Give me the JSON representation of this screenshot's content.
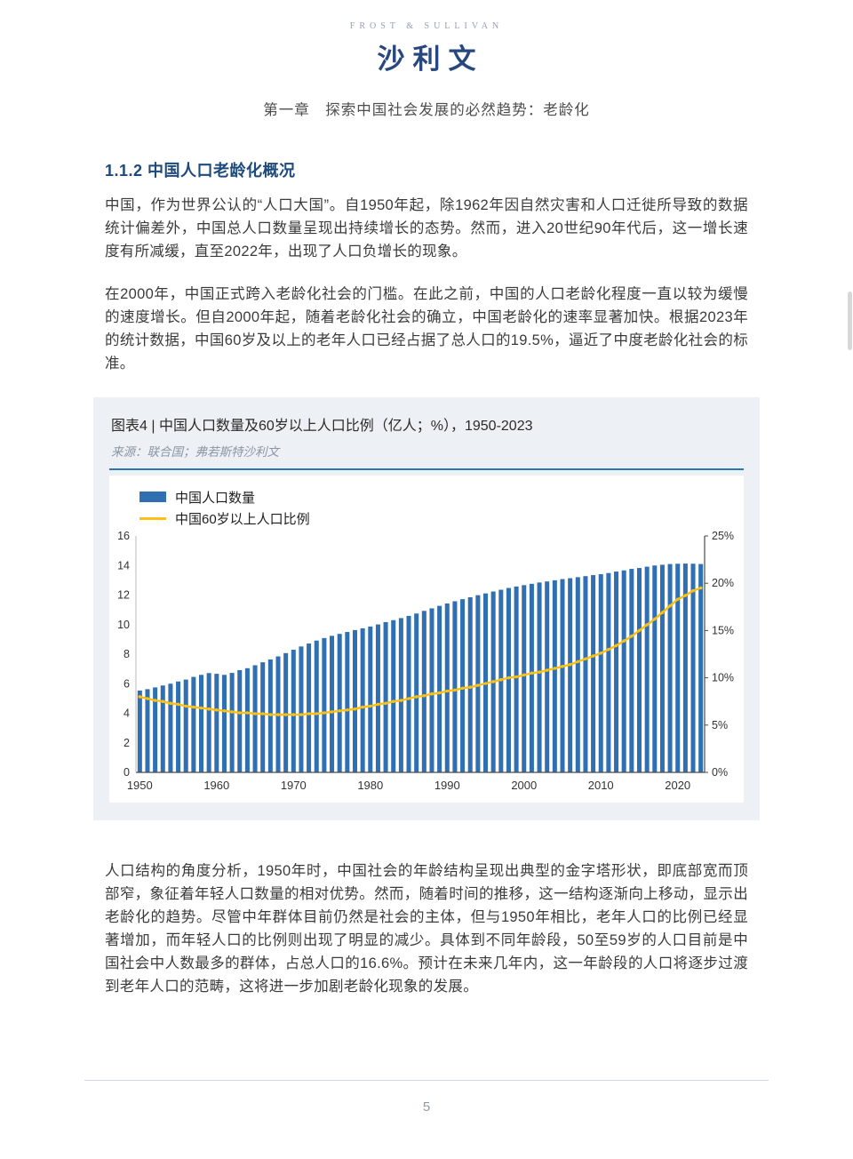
{
  "header": {
    "logo_en": "FROST & SULLIVAN",
    "logo_cn": "沙利文",
    "chapter": "第一章　探索中国社会发展的必然趋势：老龄化"
  },
  "section": {
    "title": "1.1.2 中国人口老龄化概况",
    "paragraphs": [
      "中国，作为世界公认的“人口大国”。自1950年起，除1962年因自然灾害和人口迁徙所导致的数据统计偏差外，中国总人口数量呈现出持续增长的态势。然而，进入20世纪90年代后，这一增长速度有所减缓，直至2022年，出现了人口负增长的现象。",
      "在2000年，中国正式跨入老龄化社会的门槛。在此之前，中国的人口老龄化程度一直以较为缓慢的速度增长。但自2000年起，随着老龄化社会的确立，中国老龄化的速率显著加快。根据2023年的统计数据，中国60岁及以上的老年人口已经占据了总人口的19.5%，逼近了中度老龄化社会的标准。",
      "人口结构的角度分析，1950年时，中国社会的年龄结构呈现出典型的金字塔形状，即底部宽而顶部窄，象征着年轻人口数量的相对优势。然而，随着时间的推移，这一结构逐渐向上移动，显示出老龄化的趋势。尽管中年群体目前仍然是社会的主体，但与1950年相比，老年人口的比例已经显著增加，而年轻人口的比例则出现了明显的减少。具体到不同年龄段，50至59岁的人口目前是中国社会中人数最多的群体，占总人口的16.6%。预计在未来几年内，这一年龄段的人口将逐步过渡到老年人口的范畴，这将进一步加剧老龄化现象的发展。"
    ]
  },
  "figure": {
    "label": "图表4 | 中国人口数量及60岁以上人口比例（亿人；%），1950-2023",
    "source": "来源：联合国；弗若斯特沙利文",
    "legend": [
      "中国人口数量",
      "中国60岁以上人口比例"
    ]
  },
  "chart_data": {
    "type": "bar",
    "overlay": "line",
    "title": "中国人口数量及60岁以上人口比例（亿人；%），1950-2023",
    "x": [
      1950,
      1951,
      1952,
      1953,
      1954,
      1955,
      1956,
      1957,
      1958,
      1959,
      1960,
      1961,
      1962,
      1963,
      1964,
      1965,
      1966,
      1967,
      1968,
      1969,
      1970,
      1971,
      1972,
      1973,
      1974,
      1975,
      1976,
      1977,
      1978,
      1979,
      1980,
      1981,
      1982,
      1983,
      1984,
      1985,
      1986,
      1987,
      1988,
      1989,
      1990,
      1991,
      1992,
      1993,
      1994,
      1995,
      1996,
      1997,
      1998,
      1999,
      2000,
      2001,
      2002,
      2003,
      2004,
      2005,
      2006,
      2007,
      2008,
      2009,
      2010,
      2011,
      2012,
      2013,
      2014,
      2015,
      2016,
      2017,
      2018,
      2019,
      2020,
      2021,
      2022,
      2023
    ],
    "series": [
      {
        "name": "中国人口数量",
        "type": "bar",
        "axis": "left",
        "unit": "亿人",
        "values": [
          5.54,
          5.63,
          5.75,
          5.88,
          6.0,
          6.15,
          6.28,
          6.46,
          6.6,
          6.72,
          6.67,
          6.6,
          6.73,
          6.92,
          7.05,
          7.25,
          7.45,
          7.64,
          7.85,
          8.07,
          8.3,
          8.52,
          8.72,
          8.92,
          9.09,
          9.24,
          9.37,
          9.5,
          9.63,
          9.75,
          9.87,
          10.01,
          10.17,
          10.3,
          10.44,
          10.59,
          10.75,
          10.93,
          11.1,
          11.27,
          11.43,
          11.58,
          11.72,
          11.85,
          11.99,
          12.11,
          12.24,
          12.36,
          12.48,
          12.58,
          12.67,
          12.76,
          12.85,
          12.92,
          13.0,
          13.08,
          13.14,
          13.21,
          13.28,
          13.35,
          13.41,
          13.49,
          13.59,
          13.67,
          13.77,
          13.83,
          13.92,
          14.0,
          14.05,
          14.1,
          14.12,
          14.13,
          14.12,
          14.1
        ]
      },
      {
        "name": "中国60岁以上人口比例",
        "type": "line",
        "axis": "right",
        "unit": "%",
        "values": [
          8.0,
          7.8,
          7.6,
          7.5,
          7.3,
          7.2,
          7.0,
          6.9,
          6.8,
          6.7,
          6.6,
          6.5,
          6.4,
          6.3,
          6.3,
          6.2,
          6.2,
          6.1,
          6.1,
          6.1,
          6.1,
          6.1,
          6.2,
          6.2,
          6.3,
          6.4,
          6.5,
          6.6,
          6.7,
          6.9,
          7.0,
          7.2,
          7.3,
          7.5,
          7.6,
          7.8,
          8.0,
          8.1,
          8.3,
          8.4,
          8.6,
          8.7,
          8.9,
          9.0,
          9.2,
          9.4,
          9.6,
          9.8,
          10.0,
          10.1,
          10.3,
          10.5,
          10.6,
          10.8,
          11.0,
          11.2,
          11.4,
          11.7,
          12.0,
          12.3,
          12.6,
          13.0,
          13.4,
          13.9,
          14.4,
          15.0,
          15.6,
          16.2,
          16.9,
          17.6,
          18.3,
          18.7,
          19.2,
          19.5
        ]
      }
    ],
    "left_axis": {
      "max": 16,
      "ticks": [
        0,
        2,
        4,
        6,
        8,
        10,
        12,
        14,
        16
      ]
    },
    "right_axis": {
      "max": 25,
      "ticks": [
        "0%",
        "5%",
        "10%",
        "15%",
        "20%",
        "25%"
      ]
    },
    "x_ticks": [
      1950,
      1960,
      1970,
      1980,
      1990,
      2000,
      2010,
      2020
    ],
    "grid": false,
    "legend_position": "top-left",
    "colors": {
      "bar": "#2f6fb2",
      "line": "#fcc012"
    }
  },
  "footer": {
    "page_number": "5"
  }
}
